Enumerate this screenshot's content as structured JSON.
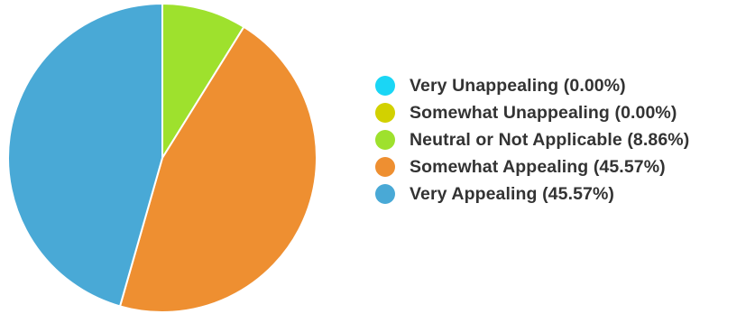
{
  "chart_data": {
    "type": "pie",
    "slices": [
      {
        "label": "Very Unappealing",
        "percent_label": "(0.00%)",
        "value": 0.0,
        "color": "#1ad6f5"
      },
      {
        "label": "Somewhat Unappealing",
        "percent_label": "(0.00%)",
        "value": 0.0,
        "color": "#d2d100"
      },
      {
        "label": "Neutral or Not Applicable",
        "percent_label": "(8.86%)",
        "value": 8.86,
        "color": "#9ee12d"
      },
      {
        "label": "Somewhat Appealing",
        "percent_label": "(45.57%)",
        "value": 45.57,
        "color": "#ee8f31"
      },
      {
        "label": "Very Appealing",
        "percent_label": "(45.57%)",
        "value": 45.57,
        "color": "#49a9d6"
      }
    ],
    "start_angle": "12 o'clock",
    "direction": "clockwise",
    "legend_position": "right",
    "slice_border_color": "#ffffff"
  }
}
